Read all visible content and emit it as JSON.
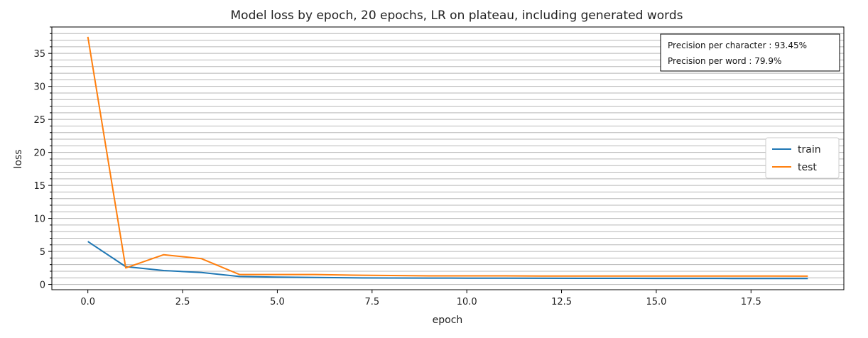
{
  "chart_data": {
    "type": "line",
    "title": "Model loss by epoch, 20 epochs, LR on plateau, including generated words",
    "xlabel": "epoch",
    "ylabel": "loss",
    "xlim": [
      -0.95,
      19.95
    ],
    "ylim": [
      -0.8,
      39
    ],
    "xticks": [
      0,
      2.5,
      5,
      7.5,
      10,
      12.5,
      15,
      17.5
    ],
    "xtick_labels": [
      "0.0",
      "2.5",
      "5.0",
      "7.5",
      "10.0",
      "12.5",
      "15.0",
      "17.5"
    ],
    "yticks": [
      0,
      5,
      10,
      15,
      20,
      25,
      30,
      35
    ],
    "ytick_labels": [
      "0",
      "5",
      "10",
      "15",
      "20",
      "25",
      "30",
      "35"
    ],
    "grid": "horizontal, minor",
    "legend_position": "center-right",
    "x": [
      0,
      1,
      2,
      3,
      4,
      5,
      6,
      7,
      8,
      9,
      10,
      11,
      12,
      13,
      14,
      15,
      16,
      17,
      18,
      19
    ],
    "series": [
      {
        "name": "train",
        "color": "#1f77b4",
        "values": [
          6.5,
          2.7,
          2.1,
          1.8,
          1.2,
          1.1,
          1.05,
          1.0,
          0.98,
          0.96,
          0.95,
          0.94,
          0.93,
          0.92,
          0.92,
          0.91,
          0.91,
          0.9,
          0.9,
          0.9
        ]
      },
      {
        "name": "test",
        "color": "#ff7f0e",
        "values": [
          37.5,
          2.5,
          4.5,
          3.9,
          1.5,
          1.5,
          1.5,
          1.4,
          1.35,
          1.3,
          1.3,
          1.3,
          1.28,
          1.28,
          1.27,
          1.27,
          1.27,
          1.26,
          1.26,
          1.25
        ]
      }
    ],
    "annotations": [
      "Precision per character : 93.45%",
      "Precision per word : 79.9%"
    ]
  }
}
